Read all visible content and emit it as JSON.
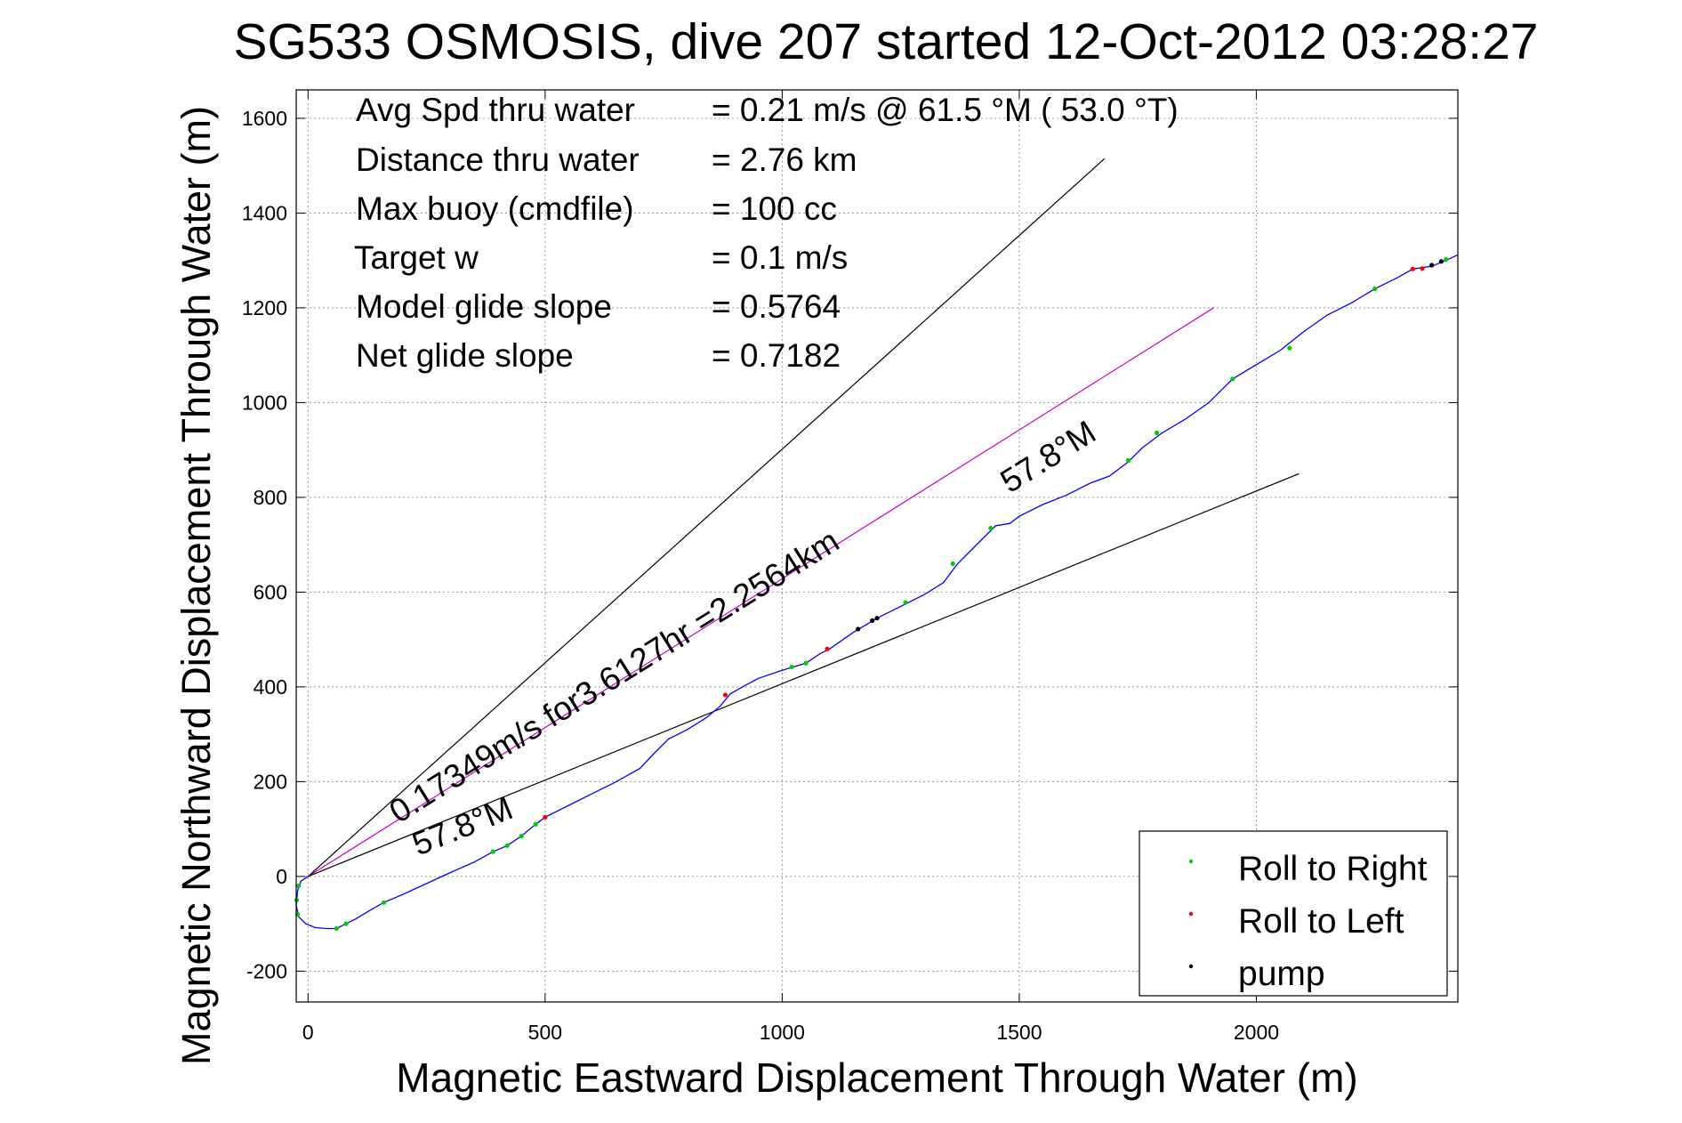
{
  "chart_data": {
    "type": "line",
    "title": "SG533 OSMOSIS, dive 207 started 12-Oct-2012 03:28:27",
    "xlabel": "Magnetic Eastward Displacement Through Water (m)",
    "ylabel": "Magnetic Northward Displacement Through Water (m)",
    "xlim": [
      -25,
      2425
    ],
    "ylim": [
      -265,
      1660
    ],
    "xticks": [
      0,
      500,
      1000,
      1500,
      2000
    ],
    "yticks": [
      -200,
      0,
      200,
      400,
      600,
      800,
      1000,
      1200,
      1400,
      1600
    ],
    "grid": true,
    "legend_position": "bottom-right",
    "info_lines": [
      {
        "label": "Avg Spd thru water",
        "value": "=  0.21 m/s @  61.5 °M ( 53.0 °T)"
      },
      {
        "label": "Distance thru water",
        "value": "=  2.76 km"
      },
      {
        "label": "Max buoy (cmdfile)",
        "value": "= 100 cc"
      },
      {
        "label": "Target w",
        "value": "= 0.1 m/s"
      },
      {
        "label": "Model glide slope",
        "value": "= 0.5764"
      },
      {
        "label": "Net glide slope",
        "value": "= 0.7182"
      }
    ],
    "annotations": {
      "current_label": "0.17349m/s for3.6127hr =2.2564km",
      "heading_lower": "57.8°M",
      "heading_upper": "57.8°M"
    },
    "legend": [
      {
        "label": "Roll to Right",
        "color": "#00cc00"
      },
      {
        "label": "Roll to Left",
        "color": "#ff0000"
      },
      {
        "label": "pump",
        "color": "#000000"
      }
    ],
    "reference_lines": [
      {
        "color": "#000000",
        "points": [
          [
            0,
            0
          ],
          [
            1680,
            1515
          ]
        ]
      },
      {
        "color": "#cc00cc",
        "points": [
          [
            0,
            0
          ],
          [
            1910,
            1200
          ]
        ]
      },
      {
        "color": "#000000",
        "points": [
          [
            0,
            0
          ],
          [
            2090,
            850
          ]
        ]
      }
    ],
    "track": {
      "color": "#0000ff",
      "points": [
        [
          0,
          0
        ],
        [
          -15,
          -10
        ],
        [
          -22,
          -30
        ],
        [
          -25,
          -60
        ],
        [
          -20,
          -85
        ],
        [
          -5,
          -100
        ],
        [
          15,
          -108
        ],
        [
          40,
          -110
        ],
        [
          60,
          -110
        ],
        [
          80,
          -100
        ],
        [
          100,
          -90
        ],
        [
          130,
          -72
        ],
        [
          160,
          -55
        ],
        [
          200,
          -38
        ],
        [
          250,
          -15
        ],
        [
          300,
          8
        ],
        [
          350,
          30
        ],
        [
          390,
          52
        ],
        [
          420,
          65
        ],
        [
          450,
          85
        ],
        [
          480,
          110
        ],
        [
          500,
          125
        ],
        [
          550,
          150
        ],
        [
          600,
          175
        ],
        [
          650,
          200
        ],
        [
          700,
          228
        ],
        [
          730,
          260
        ],
        [
          760,
          290
        ],
        [
          800,
          310
        ],
        [
          840,
          335
        ],
        [
          870,
          360
        ],
        [
          890,
          385
        ],
        [
          920,
          402
        ],
        [
          950,
          418
        ],
        [
          1000,
          435
        ],
        [
          1050,
          450
        ],
        [
          1080,
          470
        ],
        [
          1100,
          480
        ],
        [
          1150,
          515
        ],
        [
          1200,
          545
        ],
        [
          1250,
          570
        ],
        [
          1300,
          595
        ],
        [
          1340,
          620
        ],
        [
          1370,
          660
        ],
        [
          1400,
          690
        ],
        [
          1430,
          720
        ],
        [
          1450,
          740
        ],
        [
          1480,
          745
        ],
        [
          1500,
          760
        ],
        [
          1550,
          785
        ],
        [
          1600,
          805
        ],
        [
          1650,
          830
        ],
        [
          1690,
          845
        ],
        [
          1730,
          875
        ],
        [
          1760,
          905
        ],
        [
          1800,
          935
        ],
        [
          1850,
          965
        ],
        [
          1900,
          1000
        ],
        [
          1950,
          1050
        ],
        [
          2000,
          1080
        ],
        [
          2050,
          1110
        ],
        [
          2100,
          1150
        ],
        [
          2150,
          1185
        ],
        [
          2200,
          1210
        ],
        [
          2250,
          1240
        ],
        [
          2300,
          1265
        ],
        [
          2330,
          1282
        ],
        [
          2370,
          1288
        ],
        [
          2400,
          1300
        ],
        [
          2425,
          1312
        ]
      ]
    },
    "roll_right": [
      [
        -20,
        -20
      ],
      [
        -24,
        -50
      ],
      [
        -22,
        -80
      ],
      [
        60,
        -110
      ],
      [
        80,
        -100
      ],
      [
        160,
        -55
      ],
      [
        390,
        52
      ],
      [
        420,
        65
      ],
      [
        450,
        85
      ],
      [
        480,
        110
      ],
      [
        1020,
        442
      ],
      [
        1050,
        450
      ],
      [
        1260,
        578
      ],
      [
        1360,
        660
      ],
      [
        1440,
        735
      ],
      [
        1730,
        878
      ],
      [
        1790,
        936
      ],
      [
        1950,
        1050
      ],
      [
        2070,
        1115
      ],
      [
        2250,
        1240
      ],
      [
        2400,
        1302
      ]
    ],
    "roll_left": [
      [
        500,
        125
      ],
      [
        880,
        383
      ],
      [
        1095,
        480
      ],
      [
        2330,
        1282
      ],
      [
        2350,
        1283
      ]
    ],
    "pump": [
      [
        1160,
        522
      ],
      [
        1190,
        540
      ],
      [
        1200,
        545
      ],
      [
        2370,
        1290
      ],
      [
        2390,
        1298
      ]
    ]
  }
}
